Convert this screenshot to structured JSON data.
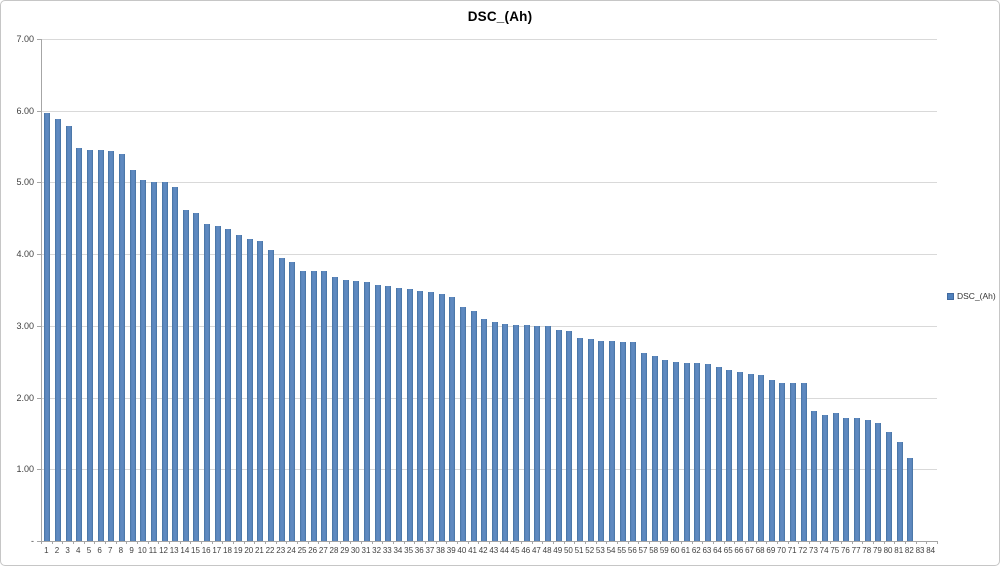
{
  "title": "DSC_(Ah)",
  "legend": {
    "label": "DSC_(Ah)",
    "marker_color": "#4F81BD"
  },
  "colors": {
    "bar": "#4F81BD",
    "bar_edge": "#41699E",
    "gridline": "#D9D9D9",
    "axis": "#A6A6A6",
    "label_text": "#3F3F3F",
    "frame_border": "#C6C6C6",
    "background": "#FFFFFF"
  },
  "chart_data": {
    "type": "bar",
    "title": "DSC_(Ah)",
    "series_name": "DSC_(Ah)",
    "xlabel": "",
    "ylabel": "",
    "ylim": [
      0,
      7
    ],
    "grid": true,
    "legend_position": "right",
    "y_ticks_top_to_bottom": [
      "7.00",
      "6.00",
      "5.00",
      "4.00",
      "3.00",
      "2.00",
      "1.00",
      "-"
    ],
    "y_tick_values_top_to_bottom": [
      7,
      6,
      5,
      4,
      3,
      2,
      1,
      0
    ],
    "categories": [
      "1",
      "2",
      "3",
      "4",
      "5",
      "6",
      "7",
      "8",
      "9",
      "10",
      "11",
      "12",
      "13",
      "14",
      "15",
      "16",
      "17",
      "18",
      "19",
      "20",
      "21",
      "22",
      "23",
      "24",
      "25",
      "26",
      "27",
      "28",
      "29",
      "30",
      "31",
      "32",
      "33",
      "34",
      "35",
      "36",
      "37",
      "38",
      "39",
      "40",
      "41",
      "42",
      "43",
      "44",
      "45",
      "46",
      "47",
      "48",
      "49",
      "50",
      "51",
      "52",
      "53",
      "54",
      "55",
      "56",
      "57",
      "58",
      "59",
      "60",
      "61",
      "62",
      "63",
      "64",
      "65",
      "66",
      "67",
      "68",
      "69",
      "70",
      "71",
      "72",
      "73",
      "74",
      "75",
      "76",
      "77",
      "78",
      "79",
      "80",
      "81",
      "82",
      "83",
      "84"
    ],
    "values": [
      5.97,
      5.88,
      5.79,
      5.48,
      5.45,
      5.45,
      5.44,
      5.4,
      5.18,
      5.04,
      5.0,
      5.0,
      4.94,
      4.62,
      4.57,
      4.42,
      4.39,
      4.35,
      4.27,
      4.21,
      4.18,
      4.06,
      3.94,
      3.89,
      3.77,
      3.76,
      3.76,
      3.68,
      3.64,
      3.63,
      3.61,
      3.57,
      3.56,
      3.53,
      3.51,
      3.49,
      3.47,
      3.44,
      3.4,
      3.27,
      3.21,
      3.1,
      3.05,
      3.02,
      3.01,
      3.01,
      3.0,
      3.0,
      2.94,
      2.93,
      2.83,
      2.81,
      2.79,
      2.79,
      2.78,
      2.78,
      2.62,
      2.58,
      2.53,
      2.49,
      2.48,
      2.48,
      2.47,
      2.42,
      2.38,
      2.36,
      2.33,
      2.32,
      2.25,
      2.21,
      2.2,
      2.2,
      1.81,
      1.76,
      1.78,
      1.72,
      1.72,
      1.69,
      1.64,
      1.52,
      1.38,
      1.16,
      0.0,
      0.0
    ]
  }
}
